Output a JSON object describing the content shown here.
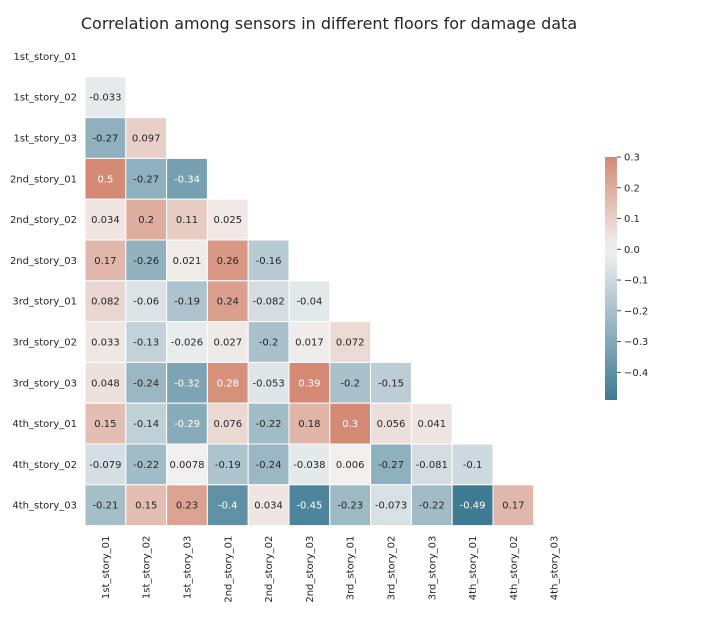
{
  "chart_data": {
    "type": "heatmap",
    "title": "Correlation among sensors in different floors for damage data",
    "xlabel": "",
    "ylabel": "",
    "mask": "upper-triangle-including-diagonal",
    "labels": [
      "1st_story_01",
      "1st_story_02",
      "1st_story_03",
      "2nd_story_01",
      "2nd_story_02",
      "2nd_story_03",
      "3rd_story_01",
      "3rd_story_02",
      "3rd_story_03",
      "4th_story_01",
      "4th_story_02",
      "4th_story_03"
    ],
    "rows": [
      {
        "values": [],
        "labels": []
      },
      {
        "values": [
          -0.033
        ],
        "labels": [
          "-0.033"
        ]
      },
      {
        "values": [
          -0.27,
          0.097
        ],
        "labels": [
          "-0.27",
          "0.097"
        ]
      },
      {
        "values": [
          0.5,
          -0.27,
          -0.34
        ],
        "labels": [
          "0.5",
          "-0.27",
          "-0.34"
        ]
      },
      {
        "values": [
          0.034,
          0.2,
          0.11,
          0.025
        ],
        "labels": [
          "0.034",
          "0.2",
          "0.11",
          "0.025"
        ]
      },
      {
        "values": [
          0.17,
          -0.26,
          0.021,
          0.26,
          -0.16
        ],
        "labels": [
          "0.17",
          "-0.26",
          "0.021",
          "0.26",
          "-0.16"
        ]
      },
      {
        "values": [
          0.082,
          -0.06,
          -0.19,
          0.24,
          -0.082,
          -0.04
        ],
        "labels": [
          "0.082",
          "-0.06",
          "-0.19",
          "0.24",
          "-0.082",
          "-0.04"
        ]
      },
      {
        "values": [
          0.033,
          -0.13,
          -0.026,
          0.027,
          -0.2,
          0.017,
          0.072
        ],
        "labels": [
          "0.033",
          "-0.13",
          "-0.026",
          "0.027",
          "-0.2",
          "0.017",
          "0.072"
        ]
      },
      {
        "values": [
          0.048,
          -0.24,
          -0.32,
          0.28,
          -0.053,
          0.39,
          -0.2,
          -0.15
        ],
        "labels": [
          "0.048",
          "-0.24",
          "-0.32",
          "0.28",
          "-0.053",
          "0.39",
          "-0.2",
          "-0.15"
        ]
      },
      {
        "values": [
          0.15,
          -0.14,
          -0.29,
          0.076,
          -0.22,
          0.18,
          0.3,
          0.056,
          0.041
        ],
        "labels": [
          "0.15",
          "-0.14",
          "-0.29",
          "0.076",
          "-0.22",
          "0.18",
          "0.3",
          "0.056",
          "0.041"
        ]
      },
      {
        "values": [
          -0.079,
          -0.22,
          0.0078,
          -0.19,
          -0.24,
          -0.038,
          0.006,
          -0.27,
          -0.081,
          -0.1
        ],
        "labels": [
          "-0.079",
          "-0.22",
          "0.0078",
          "-0.19",
          "-0.24",
          "-0.038",
          "0.006",
          "-0.27",
          "-0.081",
          "-0.1"
        ]
      },
      {
        "values": [
          -0.21,
          0.15,
          0.23,
          -0.4,
          0.034,
          -0.45,
          -0.23,
          -0.073,
          -0.22,
          -0.49,
          0.17
        ],
        "labels": [
          "-0.21",
          "0.15",
          "0.23",
          "-0.4",
          "0.034",
          "-0.45",
          "-0.23",
          "-0.073",
          "-0.22",
          "-0.49",
          "0.17"
        ]
      }
    ],
    "colorbar": {
      "vmin": -0.49,
      "vmax": 0.3,
      "ticks": [
        0.3,
        0.2,
        0.1,
        0.0,
        -0.1,
        -0.2,
        -0.3,
        -0.4
      ],
      "tick_labels": [
        "0.3",
        "0.2",
        "0.1",
        "0.0",
        "−0.1",
        "−0.2",
        "−0.3",
        "−0.4"
      ]
    },
    "colors": {
      "negative_end": "#3f7a93",
      "center": "#f2f2f2",
      "positive_end": "#d48a74",
      "text_dark": "#262626",
      "text_light": "#ffffff"
    }
  }
}
